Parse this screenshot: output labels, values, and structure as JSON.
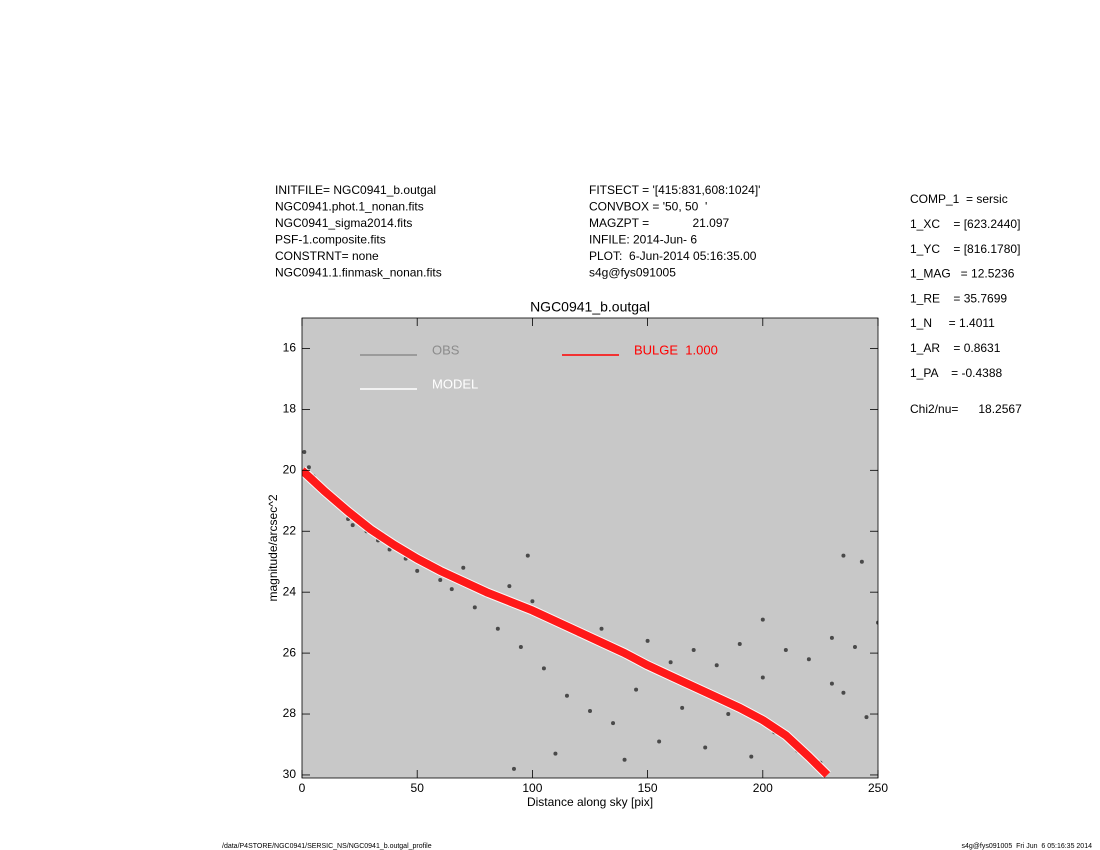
{
  "header": {
    "left": [
      "INITFILE= NGC0941_b.outgal",
      "NGC0941.phot.1_nonan.fits",
      "NGC0941_sigma2014.fits",
      "PSF-1.composite.fits",
      "CONSTRNT= none",
      "NGC0941.1.finmask_nonan.fits"
    ],
    "middle": [
      "FITSECT = '[415:831,608:1024]'",
      "CONVBOX = '50, 50  '",
      "MAGZPT =             21.097",
      "INFILE: 2014-Jun- 6",
      "PLOT:  6-Jun-2014 05:16:35.00",
      "s4g@fys091005"
    ],
    "right": [
      "COMP_1  = sersic",
      "1_XC    = [623.2440]",
      "1_YC    = [816.1780]",
      "1_MAG   = 12.5236",
      "1_RE    = 35.7699",
      "1_N     = 1.4011",
      "1_AR    = 0.8631",
      "1_PA    = -0.4388"
    ],
    "chi2": "Chi2/nu=      18.2567"
  },
  "footer": {
    "left": "/data/P4STORE/NGC0941/SERSIC_NS/NGC0941_b.outgal_profile",
    "right": "s4g@fys091005  Fri Jun  6 05:16:35 2014"
  },
  "chart_data": {
    "type": "scatter",
    "title": "NGC0941_b.outgal",
    "x_label": "Distance along sky [pix]",
    "y_label": "magnitude/arcsec^2",
    "xlim": [
      0,
      250
    ],
    "ylim": [
      30.1,
      15
    ],
    "xticks": [
      0,
      50,
      100,
      150,
      200,
      250
    ],
    "yticks": [
      16,
      18,
      20,
      22,
      24,
      26,
      28,
      30
    ],
    "background": "#c8c8c8",
    "series": [
      {
        "name": "OBS",
        "color": "#4a4a4a",
        "legend_color": "#8c8c8c",
        "mode": "markers",
        "x": [
          1,
          3,
          5,
          8,
          10,
          12,
          15,
          18,
          20,
          22,
          25,
          28,
          30,
          33,
          35,
          38,
          40,
          45,
          50,
          55,
          60,
          65,
          70,
          75,
          80,
          85,
          90,
          95,
          100,
          105,
          110,
          115,
          120,
          125,
          130,
          135,
          140,
          145,
          150,
          155,
          160,
          165,
          170,
          175,
          180,
          185,
          190,
          195,
          200,
          205,
          210,
          215,
          220,
          225,
          230,
          235,
          240,
          245,
          250,
          92,
          98,
          110,
          140,
          235,
          243,
          200,
          230
        ],
        "values": [
          19.4,
          19.9,
          20.2,
          20.5,
          20.8,
          20.9,
          21.0,
          21.3,
          21.6,
          21.8,
          21.7,
          22.0,
          21.9,
          22.3,
          22.1,
          22.6,
          22.4,
          22.9,
          23.3,
          23.0,
          23.6,
          23.9,
          23.2,
          24.5,
          24.1,
          25.2,
          23.8,
          25.8,
          24.3,
          26.5,
          24.9,
          27.4,
          25.4,
          27.9,
          25.2,
          28.3,
          26.1,
          27.2,
          25.6,
          28.9,
          26.3,
          27.8,
          25.9,
          29.1,
          26.4,
          28.0,
          25.7,
          29.4,
          26.8,
          28.6,
          25.9,
          29.2,
          26.2,
          29.6,
          25.5,
          27.3,
          25.8,
          28.1,
          25.0,
          29.8,
          22.8,
          29.3,
          29.5,
          22.8,
          23.0,
          24.9,
          27.0
        ]
      },
      {
        "name": "MODEL",
        "color": "#ffffff",
        "mode": "line",
        "x": [
          0,
          5,
          10,
          20,
          30,
          40,
          50,
          60,
          70,
          80,
          90,
          100,
          110,
          120,
          130,
          140,
          150,
          160,
          170,
          180,
          190,
          200,
          210,
          220,
          228
        ],
        "values": [
          20.0,
          20.35,
          20.7,
          21.35,
          21.95,
          22.45,
          22.9,
          23.3,
          23.65,
          24.0,
          24.3,
          24.6,
          24.95,
          25.3,
          25.65,
          26.0,
          26.4,
          26.75,
          27.1,
          27.45,
          27.8,
          28.2,
          28.7,
          29.4,
          30.0
        ]
      },
      {
        "name": "BULGE  1.000",
        "color": "#ff0000",
        "mode": "line",
        "x": [
          0,
          5,
          10,
          20,
          30,
          40,
          50,
          60,
          70,
          80,
          90,
          100,
          110,
          120,
          130,
          140,
          150,
          160,
          170,
          180,
          190,
          200,
          210,
          220,
          228
        ],
        "values": [
          20.0,
          20.35,
          20.7,
          21.35,
          21.95,
          22.45,
          22.9,
          23.3,
          23.65,
          24.0,
          24.3,
          24.6,
          24.95,
          25.3,
          25.65,
          26.0,
          26.4,
          26.75,
          27.1,
          27.45,
          27.8,
          28.2,
          28.7,
          29.4,
          30.0
        ]
      }
    ]
  }
}
